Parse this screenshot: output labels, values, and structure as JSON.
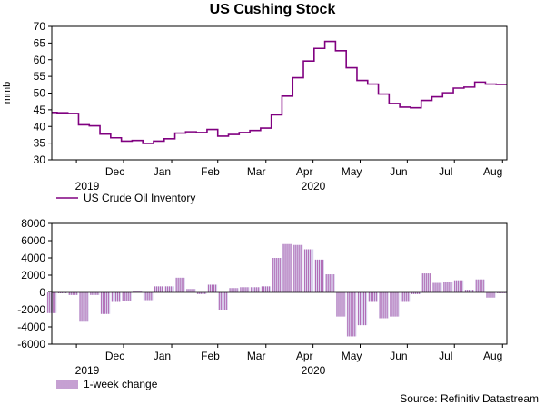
{
  "chart_data": [
    {
      "type": "line",
      "title": "US Cushing Stock",
      "ylabel": "mmb",
      "ylim": [
        30,
        70
      ],
      "yticks": [
        30,
        35,
        40,
        45,
        50,
        55,
        60,
        65,
        70
      ],
      "month_labels": [
        "Dec",
        "Jan",
        "Feb",
        "Mar",
        "Apr",
        "May",
        "Jun",
        "Jul",
        "Aug"
      ],
      "year_labels": [
        "2019",
        "2020"
      ],
      "legend_label": "US Crude Oil Inventory",
      "color": "#800080",
      "x_unit": "weeks since 2019-11-15",
      "x_range": [
        0,
        42.5
      ],
      "series": [
        {
          "name": "US Crude Oil Inventory",
          "weeks": [
            0,
            1,
            2,
            3,
            4,
            5,
            6,
            7,
            8,
            9,
            10,
            11,
            12,
            13,
            14,
            15,
            16,
            17,
            18,
            19,
            20,
            21,
            22,
            23,
            24,
            25,
            26,
            27,
            28,
            29,
            30,
            31,
            32,
            33,
            34,
            35,
            36,
            37,
            38,
            39,
            40,
            41,
            42
          ],
          "values": [
            44.2,
            44.1,
            43.9,
            40.5,
            40.2,
            37.7,
            36.6,
            35.6,
            35.8,
            34.9,
            35.6,
            36.3,
            38.0,
            38.4,
            38.2,
            39.1,
            37.1,
            37.6,
            38.2,
            38.8,
            39.5,
            43.5,
            49.1,
            54.6,
            59.6,
            63.4,
            65.5,
            62.7,
            57.6,
            53.8,
            52.7,
            49.7,
            46.9,
            45.8,
            45.6,
            47.8,
            48.9,
            50.1,
            51.5,
            51.8,
            53.3,
            52.7,
            52.6
          ]
        }
      ]
    },
    {
      "type": "bar",
      "ylim": [
        -6000,
        8000
      ],
      "yticks": [
        -6000,
        -4000,
        -2000,
        0,
        2000,
        4000,
        6000,
        8000
      ],
      "month_labels": [
        "Dec",
        "Jan",
        "Feb",
        "Mar",
        "Apr",
        "May",
        "Jun",
        "Jul",
        "Aug"
      ],
      "year_labels": [
        "2019",
        "2020"
      ],
      "legend_label": "1-week change",
      "colors": {
        "fill": "#d9d3ee",
        "stripe": "#a855a8"
      },
      "x_unit": "weeks since 2019-11-15",
      "series": [
        {
          "name": "1-week change",
          "weeks": [
            0,
            1,
            2,
            3,
            4,
            5,
            6,
            7,
            8,
            9,
            10,
            11,
            12,
            13,
            14,
            15,
            16,
            17,
            18,
            19,
            20,
            21,
            22,
            23,
            24,
            25,
            26,
            27,
            28,
            29,
            30,
            31,
            32,
            33,
            34,
            35,
            36,
            37,
            38,
            39,
            40,
            41,
            42
          ],
          "values": [
            -2400,
            -100,
            -300,
            -3400,
            -300,
            -2500,
            -1100,
            -1000,
            200,
            -900,
            700,
            700,
            1700,
            400,
            -200,
            900,
            -2000,
            500,
            600,
            600,
            700,
            4000,
            5600,
            5500,
            5000,
            3800,
            2100,
            -2800,
            -5100,
            -3800,
            -1100,
            -3000,
            -2800,
            -1100,
            -200,
            2200,
            1100,
            1200,
            1400,
            300,
            1500,
            -600,
            -100
          ]
        }
      ]
    }
  ],
  "source": "Source: Refinitiv Datastream"
}
